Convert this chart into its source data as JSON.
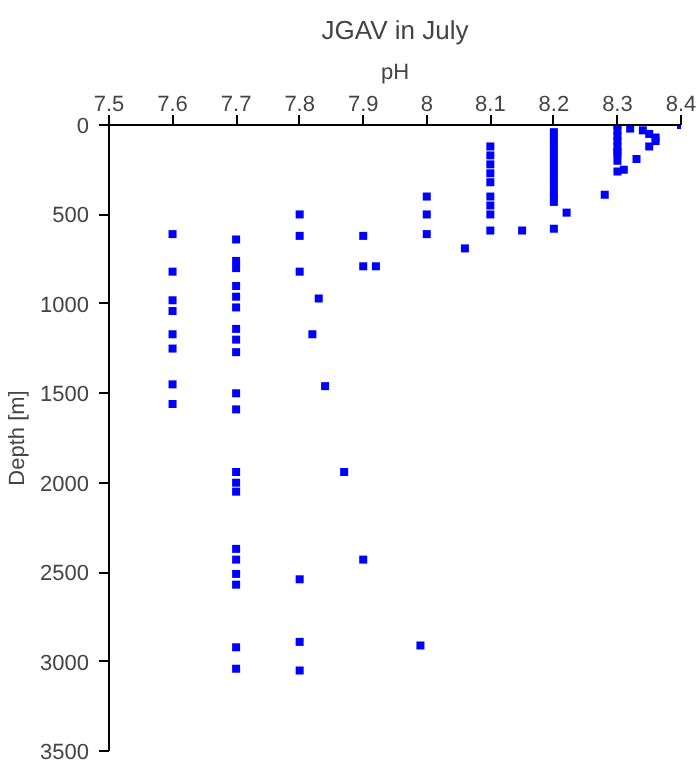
{
  "chart_data": {
    "type": "scatter",
    "title": "JGAV in July",
    "xlabel": "pH",
    "ylabel": "Depth [m]",
    "xlim": [
      7.5,
      8.4
    ],
    "xticks": [
      7.5,
      7.6,
      7.7,
      7.8,
      7.9,
      8,
      8.1,
      8.2,
      8.3,
      8.4
    ],
    "ylim": [
      3500,
      0
    ],
    "yticks": [
      0,
      500,
      1000,
      1500,
      2000,
      2500,
      3000,
      3500
    ],
    "grid": false,
    "marker": "square",
    "series": [
      {
        "color": "#0000ff",
        "x": [
          8.4,
          8.3,
          8.3,
          8.3,
          8.3,
          8.3,
          8.3,
          8.3,
          8.3,
          8.3,
          8.32,
          8.34,
          8.35,
          8.36,
          8.36,
          8.35,
          8.33,
          8.31,
          8.28,
          8.2,
          8.2,
          8.2,
          8.2,
          8.2,
          8.2,
          8.2,
          8.2,
          8.2,
          8.2,
          8.2,
          8.22,
          8.2,
          8.1,
          8.1,
          8.1,
          8.1,
          8.1,
          8.1,
          8.1,
          8.1,
          8.1,
          8.15,
          8.06,
          8.0,
          8.0,
          8.0,
          7.9,
          7.9,
          7.92,
          7.8,
          7.8,
          7.8,
          7.83,
          7.82,
          7.84,
          7.87,
          7.9,
          7.8,
          7.8,
          7.8,
          7.99,
          7.7,
          7.7,
          7.7,
          7.7,
          7.7,
          7.7,
          7.7,
          7.7,
          7.7,
          7.7,
          7.7,
          7.7,
          7.7,
          7.7,
          7.7,
          7.7,
          7.7,
          7.7,
          7.7,
          7.7,
          7.6,
          7.6,
          7.6,
          7.6,
          7.6,
          7.6,
          7.6,
          7.6
        ],
        "values": [
          0,
          0,
          30,
          60,
          90,
          120,
          150,
          160,
          260,
          200,
          20,
          30,
          50,
          70,
          90,
          120,
          190,
          250,
          390,
          40,
          80,
          120,
          160,
          200,
          240,
          280,
          320,
          360,
          400,
          430,
          490,
          580,
          120,
          170,
          220,
          270,
          320,
          400,
          450,
          500,
          590,
          590,
          690,
          400,
          500,
          610,
          620,
          790,
          790,
          500,
          620,
          820,
          970,
          1170,
          1460,
          1940,
          2430,
          2540,
          2890,
          3050,
          2910,
          640,
          760,
          800,
          900,
          960,
          1020,
          1140,
          1200,
          1270,
          1500,
          1590,
          1940,
          2000,
          2050,
          2370,
          2430,
          2510,
          2570,
          2920,
          3040,
          610,
          820,
          980,
          1040,
          1170,
          1250,
          1450,
          1560
        ]
      }
    ]
  }
}
